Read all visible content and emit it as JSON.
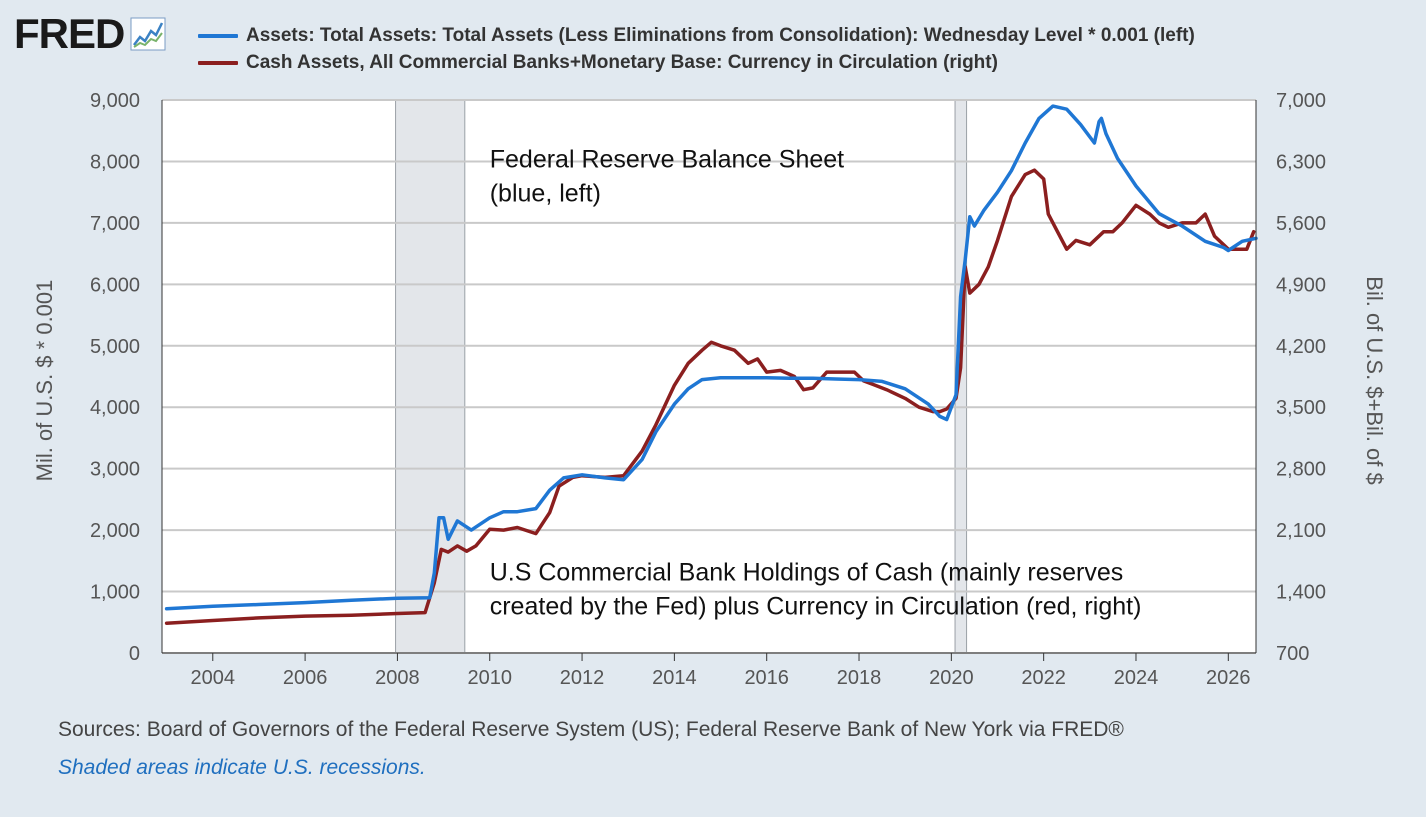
{
  "header": {
    "logo_text": "FRED",
    "logo_icon": "line-chart-icon"
  },
  "legend": [
    {
      "label": "Assets: Total Assets: Total Assets (Less Eliminations from Consolidation): Wednesday Level * 0.001 (left)",
      "color": "#1f77d4"
    },
    {
      "label": "Cash Assets, All Commercial Banks+Monetary Base: Currency in Circulation (right)",
      "color": "#8b1f1f"
    }
  ],
  "footer": {
    "sources": "Sources: Board of Governors of the Federal Reserve System (US); Federal Reserve Bank of New York via FRED®",
    "recession_note": "Shaded areas indicate U.S. recessions."
  },
  "chart_data": {
    "type": "line",
    "ylabel_left": "Mil. of U.S. $ * 0.001",
    "ylabel_right": "Bil. of U.S. $+Bil. of $",
    "xlim": [
      2002.9,
      2026.6
    ],
    "ylim_left": [
      0,
      9000
    ],
    "ylim_right": [
      700,
      7000
    ],
    "x_ticks": [
      2004,
      2006,
      2008,
      2010,
      2012,
      2014,
      2016,
      2018,
      2020,
      2022,
      2024,
      2026
    ],
    "y_ticks_left": [
      0,
      1000,
      2000,
      3000,
      4000,
      5000,
      6000,
      7000,
      8000,
      9000
    ],
    "y_ticks_right": [
      700,
      1400,
      2100,
      2800,
      3500,
      4200,
      4900,
      5600,
      6300,
      7000
    ],
    "grid": true,
    "recessions": [
      [
        2007.96,
        2009.46
      ],
      [
        2020.08,
        2020.33
      ]
    ],
    "annotations": [
      {
        "lines": [
          "Federal Reserve Balance Sheet",
          "(blue, left)"
        ],
        "x": 2010.0,
        "y": 7900
      },
      {
        "lines": [
          "U.S Commercial Bank Holdings of Cash (mainly reserves",
          "created by the Fed) plus Currency in Circulation (red, right)"
        ],
        "x": 2010.0,
        "y": 1180
      }
    ],
    "series": [
      {
        "axis": "left",
        "color": "#1f77d4",
        "x": [
          2003.0,
          2004.0,
          2005.0,
          2006.0,
          2007.0,
          2008.0,
          2008.7,
          2008.8,
          2008.9,
          2009.0,
          2009.1,
          2009.3,
          2009.6,
          2010.0,
          2010.3,
          2010.6,
          2011.0,
          2011.3,
          2011.6,
          2012.0,
          2012.5,
          2012.9,
          2013.3,
          2013.6,
          2014.0,
          2014.3,
          2014.6,
          2015.0,
          2015.5,
          2016.0,
          2016.5,
          2017.0,
          2017.5,
          2018.0,
          2018.5,
          2019.0,
          2019.5,
          2019.75,
          2019.9,
          2020.1,
          2020.2,
          2020.3,
          2020.4,
          2020.5,
          2020.7,
          2021.0,
          2021.3,
          2021.6,
          2021.9,
          2022.2,
          2022.5,
          2022.8,
          2023.1,
          2023.2,
          2023.25,
          2023.35,
          2023.6,
          2024.0,
          2024.5,
          2025.0,
          2025.5,
          2025.9,
          2026.0,
          2026.3,
          2026.6
        ],
        "y": [
          720,
          760,
          790,
          820,
          860,
          890,
          900,
          1300,
          2200,
          2200,
          1850,
          2150,
          2000,
          2200,
          2300,
          2300,
          2350,
          2650,
          2850,
          2900,
          2850,
          2820,
          3150,
          3600,
          4050,
          4300,
          4450,
          4480,
          4480,
          4480,
          4470,
          4470,
          4460,
          4450,
          4420,
          4300,
          4050,
          3850,
          3800,
          4200,
          5800,
          6400,
          7100,
          6950,
          7200,
          7500,
          7850,
          8300,
          8700,
          8900,
          8850,
          8600,
          8300,
          8650,
          8700,
          8450,
          8050,
          7600,
          7150,
          6950,
          6700,
          6600,
          6550,
          6700,
          6750
        ]
      },
      {
        "axis": "right",
        "color": "#8b1f1f",
        "x": [
          2003.0,
          2004.0,
          2005.0,
          2006.0,
          2007.0,
          2008.0,
          2008.6,
          2008.8,
          2008.95,
          2009.1,
          2009.3,
          2009.5,
          2009.7,
          2010.0,
          2010.3,
          2010.6,
          2011.0,
          2011.3,
          2011.5,
          2011.8,
          2012.0,
          2012.5,
          2012.9,
          2013.3,
          2013.6,
          2014.0,
          2014.3,
          2014.6,
          2014.8,
          2015.0,
          2015.3,
          2015.6,
          2015.8,
          2016.0,
          2016.3,
          2016.6,
          2016.8,
          2017.0,
          2017.3,
          2017.6,
          2017.9,
          2018.1,
          2018.3,
          2018.6,
          2019.0,
          2019.3,
          2019.6,
          2019.75,
          2019.9,
          2020.1,
          2020.2,
          2020.3,
          2020.4,
          2020.6,
          2020.8,
          2021.0,
          2021.3,
          2021.6,
          2021.8,
          2022.0,
          2022.1,
          2022.3,
          2022.5,
          2022.7,
          2023.0,
          2023.3,
          2023.5,
          2023.7,
          2024.0,
          2024.3,
          2024.5,
          2024.7,
          2025.0,
          2025.3,
          2025.5,
          2025.7,
          2025.9,
          2026.0,
          2026.2,
          2026.4,
          2026.55
        ],
        "y": [
          1040,
          1070,
          1100,
          1120,
          1130,
          1150,
          1160,
          1500,
          1880,
          1850,
          1920,
          1860,
          1920,
          2110,
          2100,
          2130,
          2060,
          2300,
          2600,
          2700,
          2720,
          2700,
          2720,
          3000,
          3300,
          3750,
          4000,
          4150,
          4240,
          4200,
          4150,
          4000,
          4050,
          3900,
          3920,
          3850,
          3700,
          3720,
          3900,
          3900,
          3900,
          3800,
          3760,
          3700,
          3600,
          3500,
          3450,
          3450,
          3480,
          3600,
          3950,
          5100,
          4800,
          4900,
          5100,
          5400,
          5900,
          6150,
          6200,
          6100,
          5700,
          5500,
          5300,
          5400,
          5350,
          5500,
          5500,
          5600,
          5800,
          5700,
          5600,
          5550,
          5600,
          5600,
          5700,
          5450,
          5350,
          5300,
          5300,
          5300,
          5500
        ]
      }
    ]
  }
}
